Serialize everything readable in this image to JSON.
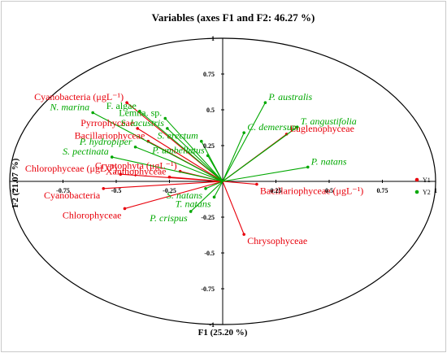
{
  "chart_data": {
    "type": "scatter",
    "subtype": "correlation-circle",
    "title": "Variables (axes F1 and F2: 46.27 %)",
    "xlabel": "F1 (25.20 %)",
    "ylabel": "F2 (21.07 %)",
    "xlim": [
      -1,
      1
    ],
    "ylim": [
      -1,
      1
    ],
    "x_ticks": [
      "-1",
      "-0.75",
      "-0.5",
      "-0.25",
      "0",
      "0.25",
      "0.5",
      "0.75",
      "1"
    ],
    "y_ticks": [
      "1",
      "0.75",
      "0.5",
      "0.25",
      "0",
      "-0.25",
      "-0.5",
      "-0.75",
      "-1"
    ],
    "legend_position": "right",
    "series": [
      {
        "name": "Y1",
        "color": "#e8000b",
        "points": [
          {
            "label": "Cyanobacteria (μgL⁻¹)",
            "x": -0.45,
            "y": 0.55,
            "italic": false
          },
          {
            "label": "Pyrrophyceae",
            "x": -0.4,
            "y": 0.37,
            "italic": false
          },
          {
            "label": "Bacillariophyceae",
            "x": -0.35,
            "y": 0.28,
            "italic": false
          },
          {
            "label": "Cryptophyta (μgL⁻¹)",
            "x": -0.2,
            "y": 0.07,
            "italic": false
          },
          {
            "label": "Chlorophyceae (μgL⁻¹)",
            "x": -0.48,
            "y": 0.05,
            "italic": false
          },
          {
            "label": "Xanthophyceae",
            "x": -0.25,
            "y": 0.03,
            "italic": false
          },
          {
            "label": "Cyanobacteria",
            "x": -0.56,
            "y": -0.05,
            "italic": false
          },
          {
            "label": "Chlorophyceae",
            "x": -0.46,
            "y": -0.19,
            "italic": false
          },
          {
            "label": "Euglenophyceae",
            "x": 0.3,
            "y": 0.33,
            "italic": false
          },
          {
            "label": "Bacillariophyceae (μgL⁻¹)",
            "x": 0.16,
            "y": -0.02,
            "italic": false
          },
          {
            "label": "Chrysophyceae",
            "x": 0.1,
            "y": -0.37,
            "italic": false
          }
        ]
      },
      {
        "name": "Y2",
        "color": "#00a800",
        "points": [
          {
            "label": "N. marina",
            "x": -0.61,
            "y": 0.48,
            "italic": true
          },
          {
            "label": "F. algae",
            "x": -0.39,
            "y": 0.49,
            "italic": false
          },
          {
            "label": "Lemna. sp.",
            "x": -0.27,
            "y": 0.44,
            "italic": false
          },
          {
            "label": "S. lacustris",
            "x": -0.26,
            "y": 0.37,
            "italic": true
          },
          {
            "label": "P. hydropiper",
            "x": -0.41,
            "y": 0.24,
            "italic": true
          },
          {
            "label": "S. pectinata",
            "x": -0.52,
            "y": 0.17,
            "italic": true
          },
          {
            "label": "S. erectum",
            "x": -0.1,
            "y": 0.28,
            "italic": true
          },
          {
            "label": "P. umbellatus",
            "x": -0.07,
            "y": 0.18,
            "italic": true
          },
          {
            "label": "P. australis",
            "x": 0.2,
            "y": 0.55,
            "italic": true
          },
          {
            "label": "C. demersum",
            "x": 0.1,
            "y": 0.34,
            "italic": true
          },
          {
            "label": "T. angustifolia",
            "x": 0.35,
            "y": 0.38,
            "italic": true
          },
          {
            "label": "P. natans",
            "x": 0.4,
            "y": 0.1,
            "italic": true
          },
          {
            "label": "S. natans",
            "x": -0.08,
            "y": -0.05,
            "italic": true
          },
          {
            "label": "T. natans",
            "x": -0.04,
            "y": -0.11,
            "italic": true
          },
          {
            "label": "P. crispus",
            "x": -0.15,
            "y": -0.21,
            "italic": true
          }
        ]
      }
    ]
  }
}
